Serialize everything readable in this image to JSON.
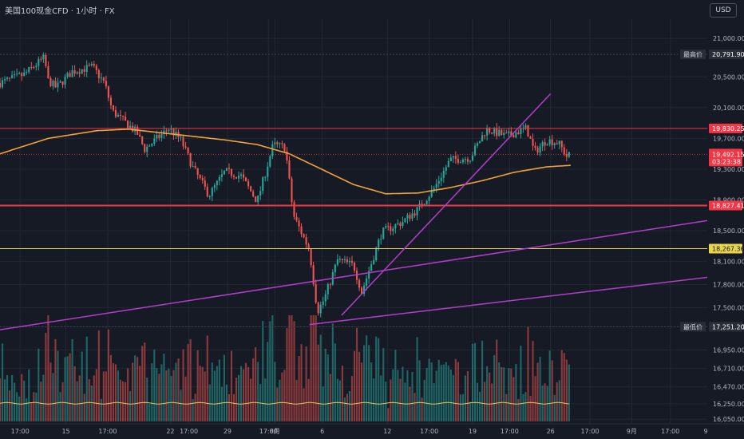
{
  "header": {
    "title": "美国100现金CFD · 1小时 · FX"
  },
  "currency_button": "USD",
  "colors": {
    "background": "#161a25",
    "up": "#26a69a",
    "down": "#ef5350",
    "ma_line": "#f0a23a",
    "volume_ma": "#e8c35a",
    "trendline": "#b13fc9",
    "resistance": "#f23645",
    "support": "#e8d44d",
    "grid": "#232733",
    "axis_text": "#b2b5be"
  },
  "chart_data": {
    "type": "candlestick",
    "timeframe": "1h",
    "y_range": [
      16000,
      21250
    ],
    "x_range": [
      0,
      88
    ],
    "grid": true,
    "y_ticks": [
      "16,050.00",
      "16,250.00",
      "16,470.00",
      "16,710.00",
      "16,950.00",
      "17,250.00",
      "17,500.00",
      "17,800.00",
      "18,100.00",
      "18,500.00",
      "18,900.00",
      "19,300.00",
      "19,700.00",
      "20,100.00",
      "20,500.00",
      "21,000.00"
    ],
    "y_tick_values": [
      16050,
      16250,
      16470,
      16710,
      16950,
      17250,
      17500,
      17800,
      18100,
      18500,
      18900,
      19300,
      19700,
      20100,
      20500,
      21000
    ],
    "x_labels": [
      {
        "t": 2.5,
        "label": "17:00"
      },
      {
        "t": 8.2,
        "label": "15"
      },
      {
        "t": 13.4,
        "label": "17:00"
      },
      {
        "t": 21.2,
        "label": "22"
      },
      {
        "t": 23.5,
        "label": "17:00"
      },
      {
        "t": 28.3,
        "label": "29"
      },
      {
        "t": 33.4,
        "label": "17:00"
      },
      {
        "t": 34.2,
        "label": "8月"
      },
      {
        "t": 40.1,
        "label": "6"
      },
      {
        "t": 48.2,
        "label": "12"
      },
      {
        "t": 53.4,
        "label": "17:00"
      },
      {
        "t": 58.8,
        "label": "19"
      },
      {
        "t": 63.4,
        "label": "17:00"
      },
      {
        "t": 68.5,
        "label": "26"
      },
      {
        "t": 73.4,
        "label": "17:00"
      },
      {
        "t": 78.6,
        "label": "9月"
      },
      {
        "t": 83.4,
        "label": "17:00"
      },
      {
        "t": 88.5,
        "label": "9"
      }
    ],
    "hlines": [
      {
        "value": 19830.25,
        "label": "19,830.25",
        "color": "#f23645",
        "width": 1
      },
      {
        "value": 18827.41,
        "label": "18,827.41",
        "color": "#f23645",
        "width": 2
      },
      {
        "value": 18267.36,
        "label": "18,267.36",
        "color": "#e8d44d",
        "width": 1
      }
    ],
    "ref_lines": [
      {
        "value": 20791.9,
        "label": "20,791.90",
        "tag": "最高价",
        "color": "#2a2e39"
      },
      {
        "value": 17251.2,
        "label": "17,251.20",
        "tag": "最低价",
        "color": "#2a2e39"
      }
    ],
    "last_price": {
      "value": 19492.15,
      "label": "19,492.15",
      "countdown": "03:23:38",
      "color": "#f23645"
    },
    "trendlines": [
      {
        "from": [
          -2,
          17180
        ],
        "to": [
          88.5,
          18640
        ]
      },
      {
        "from": [
          38.5,
          17280
        ],
        "to": [
          88.5,
          17900
        ]
      },
      {
        "from": [
          42.5,
          17400
        ],
        "to": [
          68.5,
          20280
        ]
      }
    ],
    "price_anchors": [
      [
        0,
        20420
      ],
      [
        3,
        20530
      ],
      [
        5.5,
        20750
      ],
      [
        6,
        20450
      ],
      [
        7,
        20360
      ],
      [
        9,
        20570
      ],
      [
        11.5,
        20630
      ],
      [
        13,
        20420
      ],
      [
        14,
        20050
      ],
      [
        17,
        19780
      ],
      [
        18,
        19560
      ],
      [
        21,
        19830
      ],
      [
        22.5,
        19680
      ],
      [
        24,
        19320
      ],
      [
        26,
        18960
      ],
      [
        28,
        19270
      ],
      [
        30,
        19210
      ],
      [
        32,
        18880
      ],
      [
        34,
        19620
      ],
      [
        35.5,
        19580
      ],
      [
        36.5,
        18700
      ],
      [
        38.5,
        18250
      ],
      [
        39.5,
        17450
      ],
      [
        40.3,
        17600
      ],
      [
        42,
        18120
      ],
      [
        44,
        18050
      ],
      [
        45,
        17700
      ],
      [
        47.5,
        18480
      ],
      [
        50,
        18610
      ],
      [
        52,
        18780
      ],
      [
        54,
        19050
      ],
      [
        56,
        19420
      ],
      [
        58.5,
        19450
      ],
      [
        60.5,
        19820
      ],
      [
        63,
        19730
      ],
      [
        65.5,
        19830
      ],
      [
        66.5,
        19520
      ],
      [
        68,
        19680
      ],
      [
        69.5,
        19640
      ],
      [
        70.5,
        19470
      ],
      [
        71,
        19490
      ]
    ],
    "ma_anchors": [
      [
        0,
        19500
      ],
      [
        6,
        19700
      ],
      [
        12,
        19800
      ],
      [
        16,
        19820
      ],
      [
        22,
        19750
      ],
      [
        28,
        19680
      ],
      [
        32,
        19620
      ],
      [
        36,
        19500
      ],
      [
        40,
        19300
      ],
      [
        44,
        19100
      ],
      [
        48,
        18980
      ],
      [
        52,
        18990
      ],
      [
        56,
        19060
      ],
      [
        60,
        19150
      ],
      [
        64,
        19260
      ],
      [
        68,
        19330
      ],
      [
        71,
        19350
      ]
    ],
    "volume_ma_level": 0.45
  }
}
